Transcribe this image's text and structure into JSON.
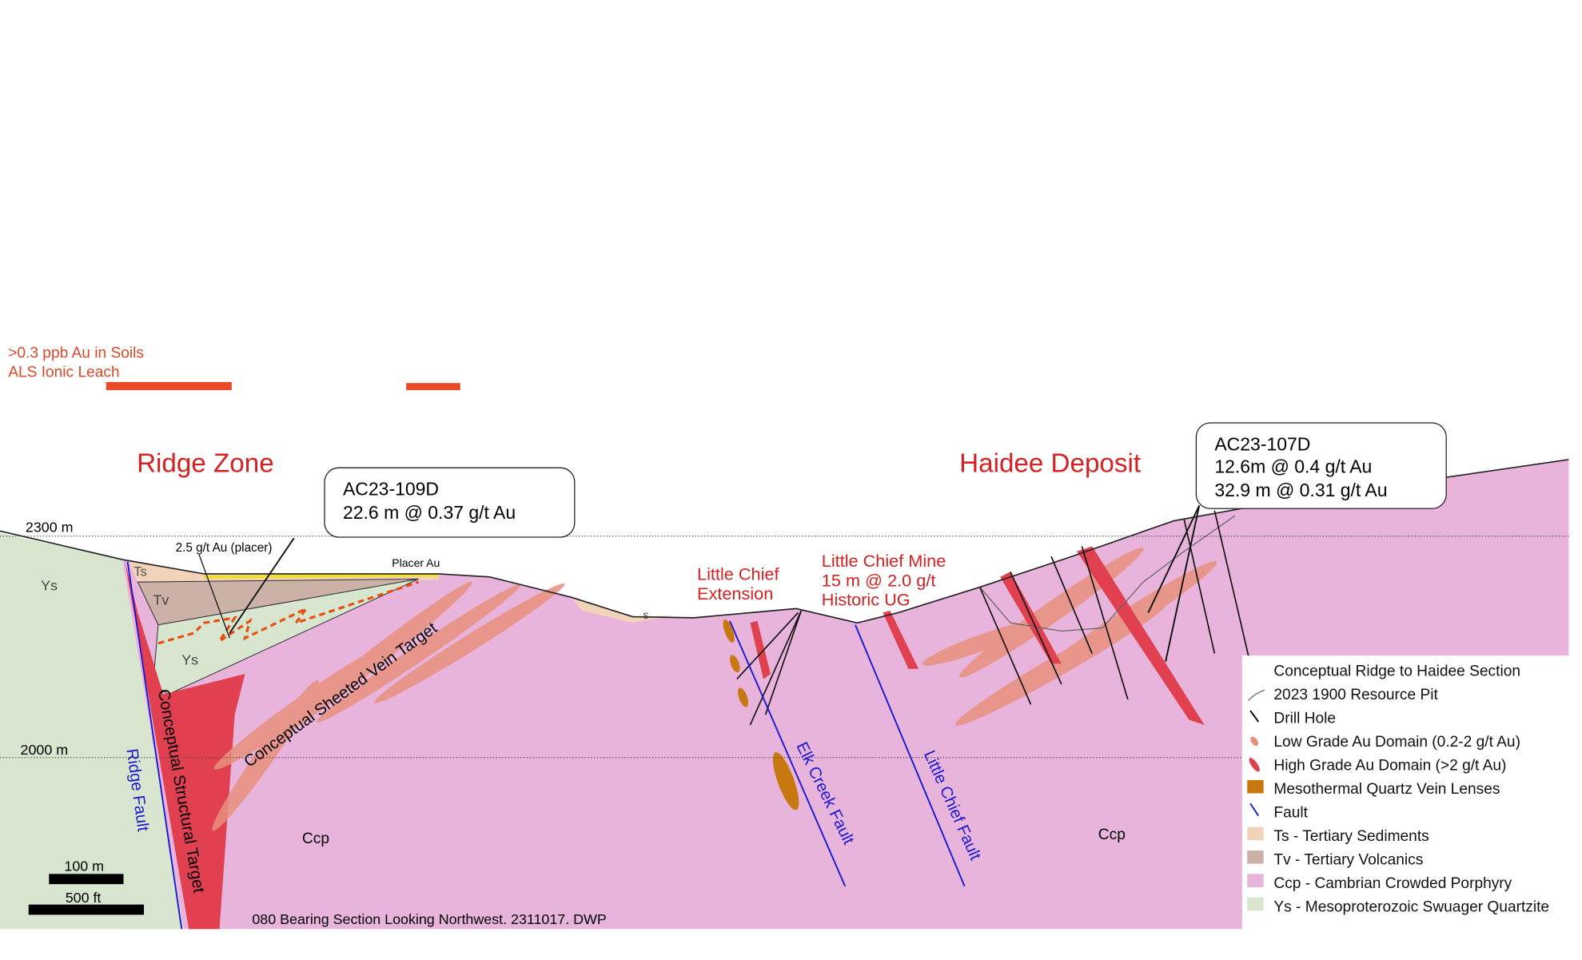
{
  "soil_anomaly": {
    "lines": [
      ">0.3 ppb Au in Soils",
      "ALS Ionic Leach"
    ]
  },
  "zones": [
    "Ridge Zone",
    "Haidee Deposit"
  ],
  "elevations": [
    "2300 m",
    "2000 m"
  ],
  "callouts": [
    {
      "hole": "AC23-109D",
      "intercepts": [
        "22.6 m @ 0.37 g/t Au"
      ]
    },
    {
      "hole": "AC23-107D",
      "intercepts": [
        "12.6m @ 0.4 g/t Au",
        "32.9 m @ 0.31 g/t Au"
      ]
    }
  ],
  "annotations": {
    "placer_grade": "2.5 g/t Au (placer)",
    "placer": "Placer Au",
    "little_chief_extension": [
      "Little Chief",
      "Extension"
    ],
    "little_chief_mine": [
      "Little Chief Mine",
      "15 m  @ 2.0 g/t",
      "Historic UG"
    ]
  },
  "unit_labels": [
    "Ts",
    "Tv",
    "Ys",
    "Ys",
    "s",
    "Ccp",
    "Ccp"
  ],
  "faults": [
    "Ridge Fault",
    "Elk Creek Fault",
    "Little Chief Fault"
  ],
  "targets": [
    "Conceptual Structural Target",
    "Conceptual Sheeted Vein Target"
  ],
  "scale_bars": [
    "100 m",
    "500 ft"
  ],
  "footer": "080 Bearing Section Looking Northwest. 2311017.  DWP",
  "legend": [
    "Conceptual Ridge to Haidee Section",
    "2023 1900 Resource Pit",
    "Drill Hole",
    "Low Grade Au Domain (0.2-2 g/t Au)",
    "High Grade Au Domain (>2 g/t Au)",
    "Mesothermal Quartz Vein Lenses",
    "Fault",
    "Ts - Tertiary Sediments",
    "Tv - Tertiary Volcanics",
    "Ccp  - Cambrian Crowded Porphyry",
    "Ys - Mesoproterozoic Swuager Quartzite"
  ]
}
